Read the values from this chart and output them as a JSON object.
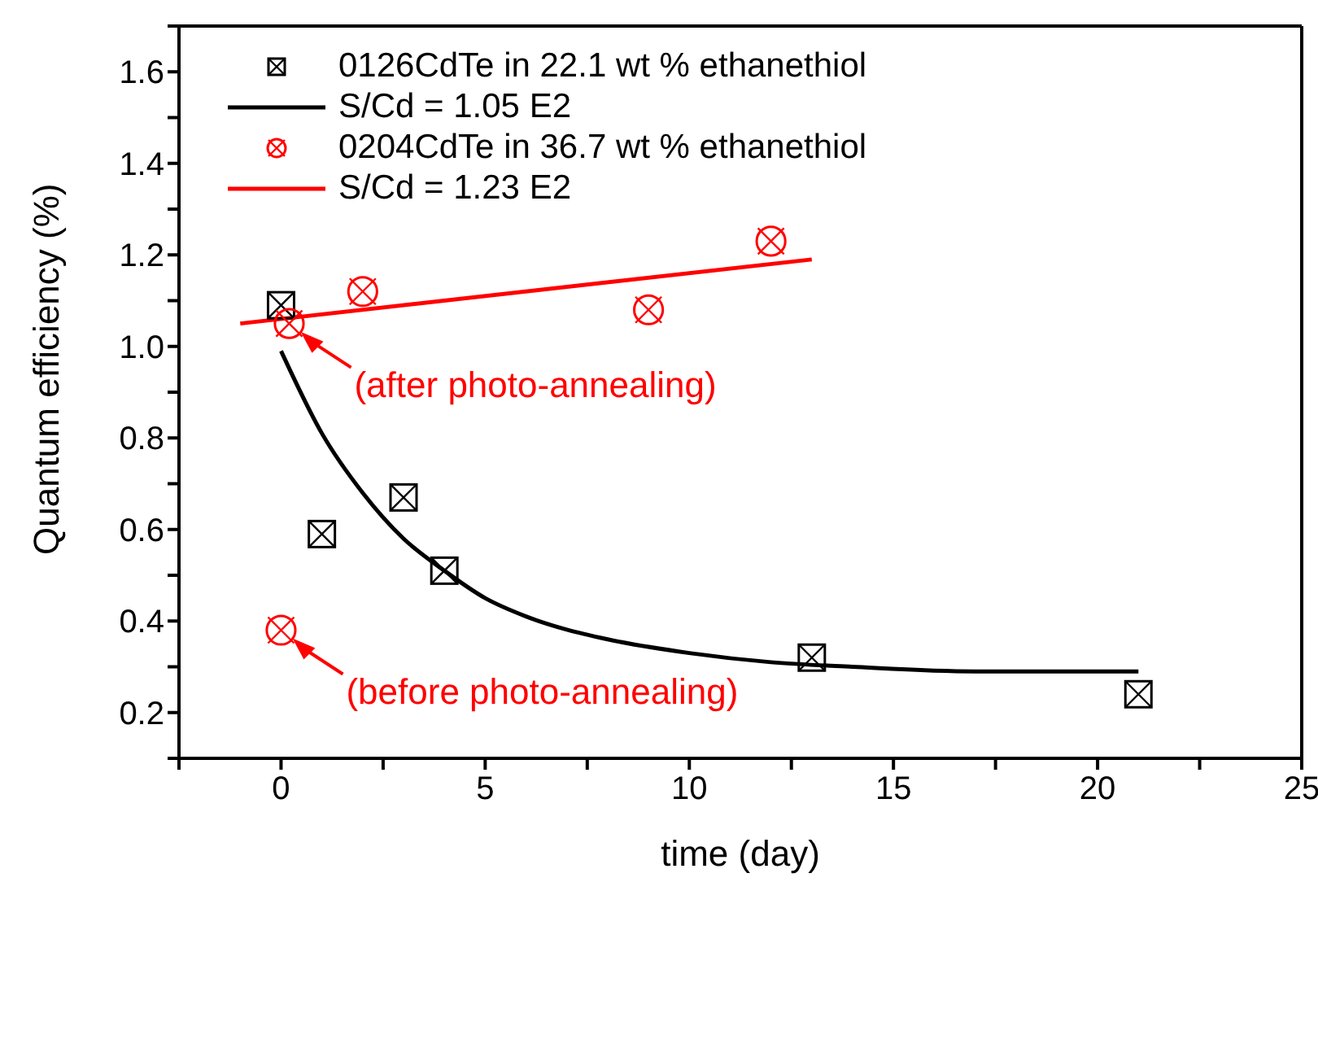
{
  "chart_data": {
    "type": "scatter",
    "xlabel": "time (day)",
    "ylabel": "Quantum efficiency (%)",
    "xlim": [
      -2.5,
      25
    ],
    "ylim": [
      0.1,
      1.7
    ],
    "xticks": [
      {
        "value": -2.5,
        "label": null
      },
      0,
      {
        "value": 2.5,
        "label": null
      },
      5,
      {
        "value": 7.5,
        "label": null
      },
      10,
      {
        "value": 12.5,
        "label": null
      },
      15,
      {
        "value": 17.5,
        "label": null
      },
      20,
      {
        "value": 22.5,
        "label": null
      },
      25
    ],
    "yticks": [
      {
        "value": 0.1,
        "label": null
      },
      {
        "value": 0.2,
        "label": "0.2"
      },
      {
        "value": 0.3,
        "label": null
      },
      {
        "value": 0.4,
        "label": "0.4"
      },
      {
        "value": 0.5,
        "label": null
      },
      {
        "value": 0.6,
        "label": "0.6"
      },
      {
        "value": 0.7,
        "label": null
      },
      {
        "value": 0.8,
        "label": "0.8"
      },
      {
        "value": 0.9,
        "label": null
      },
      {
        "value": 1.0,
        "label": "1.0"
      },
      {
        "value": 1.1,
        "label": null
      },
      {
        "value": 1.2,
        "label": "1.2"
      },
      {
        "value": 1.3,
        "label": null
      },
      {
        "value": 1.4,
        "label": "1.4"
      },
      {
        "value": 1.5,
        "label": null
      },
      {
        "value": 1.6,
        "label": "1.6"
      },
      {
        "value": 1.7,
        "label": null
      }
    ],
    "legend": "top left",
    "series": [
      {
        "name": "0126CdTe in 22.1 wt % ethanethiol",
        "marker": "square",
        "color": "#000000",
        "x": [
          0,
          1,
          3,
          4,
          13,
          21
        ],
        "values": [
          1.09,
          0.59,
          0.67,
          0.51,
          0.32,
          0.24
        ]
      },
      {
        "name": "S/Cd = 1.05 E2",
        "type": "line",
        "marker": "none",
        "color": "#000000",
        "x": [
          0,
          1,
          2,
          3,
          4,
          5,
          6,
          8,
          10,
          12,
          14,
          17,
          21
        ],
        "values": [
          0.99,
          0.81,
          0.68,
          0.58,
          0.51,
          0.45,
          0.41,
          0.36,
          0.33,
          0.31,
          0.3,
          0.29,
          0.29
        ]
      },
      {
        "name": "0204CdTe in 36.7 wt % ethanethiol",
        "marker": "circle",
        "color": "#ff0000",
        "x": [
          0.2,
          2,
          9,
          12,
          0
        ],
        "values": [
          1.05,
          1.12,
          1.08,
          1.23,
          0.38
        ]
      },
      {
        "name": "S/Cd = 1.23 E2",
        "type": "line",
        "marker": "none",
        "color": "#ff0000",
        "x": [
          -1,
          13
        ],
        "values": [
          1.05,
          1.19
        ]
      }
    ],
    "annotations": [
      {
        "text": "(after photo-annealing)",
        "x": 0.2,
        "y": 1.05
      },
      {
        "text": "(before photo-annealing)",
        "x": 0,
        "y": 0.38
      }
    ]
  }
}
